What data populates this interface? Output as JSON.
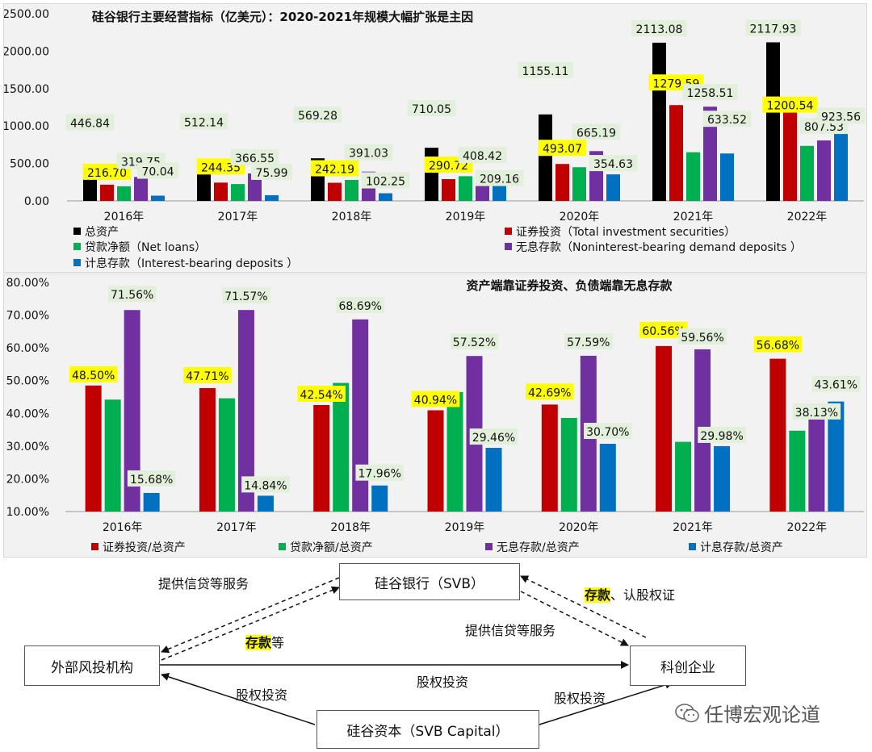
{
  "chart_data": [
    {
      "type": "bar",
      "title": "硅谷银行主要经营指标（亿美元）：2020-2021年规模大幅扩张是主因",
      "categories": [
        "2016年",
        "2017年",
        "2018年",
        "2019年",
        "2020年",
        "2021年",
        "2022年"
      ],
      "ylim": [
        0,
        2500
      ],
      "yticks": [
        "0.00",
        "500.00",
        "1000.00",
        "1500.00",
        "2000.00",
        "2500.00"
      ],
      "legend_placement": "bottom",
      "series": [
        {
          "name": "总资产",
          "color": "#000000",
          "values": [
            446.84,
            512.14,
            569.28,
            710.05,
            1155.11,
            2113.08,
            2117.93
          ],
          "labels": [
            "446.84",
            "512.14",
            "569.28",
            "710.05",
            "1155.11",
            "2113.08",
            "2117.93"
          ]
        },
        {
          "name": "证券投资（Total investment securities）",
          "color": "#c00000",
          "values": [
            216.7,
            244.35,
            242.19,
            290.72,
            493.07,
            1279.59,
            1200.54
          ],
          "labels": [
            "216.70",
            "244.35",
            "242.19",
            "290.72",
            "493.07",
            "1279.59",
            "1200.54"
          ]
        },
        {
          "name": "贷款净额（Net loans）",
          "color": "#00b050",
          "values": [
            195,
            225,
            280,
            330,
            450,
            650,
            735
          ],
          "labels": [
            "",
            "",
            "",
            "",
            "",
            "",
            ""
          ]
        },
        {
          "name": "无息存款（Noninterest-bearing demand deposits ）",
          "color": "#7030a0",
          "values": [
            319.75,
            366.55,
            391.03,
            408.42,
            665.19,
            1258.51,
            807.53
          ],
          "labels": [
            "319.75",
            "366.55",
            "391.03",
            "408.42",
            "665.19",
            "1258.51",
            "807.53"
          ]
        },
        {
          "name": "计息存款（Interest-bearing deposits ）",
          "color": "#0070c0",
          "values": [
            70.04,
            75.99,
            102.25,
            209.16,
            354.63,
            633.52,
            923.56
          ],
          "labels": [
            "70.04",
            "75.99",
            "102.25",
            "209.16",
            "354.63",
            "633.52",
            "923.56"
          ]
        }
      ]
    },
    {
      "type": "bar",
      "title": "资产端靠证券投资、负债端靠无息存款",
      "categories": [
        "2016年",
        "2017年",
        "2018年",
        "2019年",
        "2020年",
        "2021年",
        "2022年"
      ],
      "ylim": [
        10,
        80
      ],
      "yticks": [
        "10.00%",
        "20.00%",
        "30.00%",
        "40.00%",
        "50.00%",
        "60.00%",
        "70.00%",
        "80.00%"
      ],
      "legend_placement": "bottom",
      "series": [
        {
          "name": "证券投资/总资产",
          "color": "#c00000",
          "values": [
            48.5,
            47.71,
            42.54,
            40.94,
            42.69,
            60.56,
            56.68
          ],
          "labels": [
            "48.50%",
            "47.71%",
            "42.54%",
            "40.94%",
            "42.69%",
            "60.56%",
            "56.68%"
          ]
        },
        {
          "name": "贷款净额/总资产",
          "color": "#00b050",
          "values": [
            44.2,
            44.6,
            49.3,
            46.5,
            38.6,
            31.3,
            34.7
          ],
          "labels": [
            "",
            "",
            "",
            "",
            "",
            "",
            ""
          ]
        },
        {
          "name": "无息存款/总资产",
          "color": "#7030a0",
          "values": [
            71.56,
            71.57,
            68.69,
            57.52,
            57.59,
            59.56,
            38.13
          ],
          "labels": [
            "71.56%",
            "71.57%",
            "68.69%",
            "57.52%",
            "57.59%",
            "59.56%",
            "38.13%"
          ]
        },
        {
          "name": "计息存款/总资产",
          "color": "#0070c0",
          "values": [
            15.68,
            14.84,
            17.96,
            29.46,
            30.7,
            29.98,
            43.61
          ],
          "labels": [
            "15.68%",
            "14.84%",
            "17.96%",
            "29.46%",
            "30.70%",
            "29.98%",
            "43.61%"
          ]
        }
      ]
    }
  ],
  "diagram": {
    "svb": "硅谷银行（SVB）",
    "vc": "外部风投机构",
    "tech": "科创企业",
    "capital": "硅谷资本（SVB Capital）",
    "label_credit_left": "提供信贷等服务",
    "label_deposit_left_hl": "存款",
    "label_deposit_left_rest": "等",
    "label_deposit_right_hl": "存款",
    "label_deposit_right_rest": "、认股权证",
    "label_credit_right": "提供信贷等服务",
    "label_equity_mid": "股权投资",
    "label_equity_left": "股权投资",
    "label_equity_right": "股权投资"
  },
  "watermark": {
    "text": "任博宏观论道",
    "icon": "wechat-icon"
  }
}
